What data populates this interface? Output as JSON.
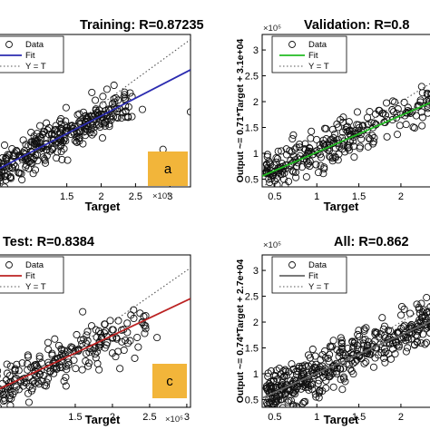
{
  "chart_data": [
    {
      "type": "scatter",
      "panel": "training",
      "title": "Training: R=0.87235",
      "xlabel": "Target",
      "ylabel": "",
      "xlim": [
        0,
        3.3
      ],
      "ylim": [
        0.35,
        3.4
      ],
      "x_ticks": [
        "1.5",
        "2",
        "2.5",
        "3"
      ],
      "y_ticks": [],
      "scale_label": "×10⁵",
      "legend": [
        "Data",
        "Fit",
        "Y = T"
      ],
      "badge": "a",
      "fit_color": "#2b2bb0",
      "fit": {
        "slope": 0.71,
        "intercept": 0.35
      },
      "series": [
        {
          "name": "Data",
          "x": [
            0.5,
            0.7,
            0.9,
            1.0,
            1.1,
            1.2,
            1.3,
            1.4,
            1.5,
            1.6,
            1.7,
            1.8,
            1.9,
            2.0,
            2.2,
            2.4,
            2.6,
            3.3,
            2.9
          ],
          "y": [
            0.75,
            0.85,
            0.95,
            1.05,
            1.15,
            1.2,
            1.3,
            1.3,
            1.45,
            1.45,
            1.6,
            1.5,
            1.7,
            1.8,
            1.9,
            1.95,
            1.9,
            1.85,
            1.1
          ]
        }
      ]
    },
    {
      "type": "scatter",
      "panel": "validation",
      "title": "Validation: R=0.8",
      "xlabel": "Target",
      "ylabel": "Output ~= 0.71*Target + 3.1e+04",
      "xlim": [
        0.35,
        2.4
      ],
      "ylim": [
        0.35,
        3.3
      ],
      "x_ticks": [
        "0.5",
        "1",
        "1.5",
        "2"
      ],
      "y_ticks": [
        "0.5",
        "1",
        "1.5",
        "2",
        "2.5",
        "3"
      ],
      "scale_label": "×10⁵",
      "legend": [
        "Data",
        "Fit",
        "Y = T"
      ],
      "fit_color": "#22bb22",
      "fit": {
        "slope": 0.71,
        "intercept": 0.31
      },
      "series": [
        {
          "name": "Data",
          "x": [
            0.45,
            0.6,
            0.7,
            0.8,
            0.9,
            1.0,
            1.1,
            1.2,
            1.3,
            1.4,
            1.5,
            1.6,
            1.7,
            1.8,
            1.9,
            2.0,
            2.1,
            2.2
          ],
          "y": [
            0.6,
            0.7,
            0.8,
            0.95,
            1.0,
            1.05,
            1.1,
            1.2,
            1.3,
            1.35,
            1.4,
            1.45,
            1.55,
            1.6,
            1.65,
            1.75,
            1.8,
            1.9
          ]
        }
      ]
    },
    {
      "type": "scatter",
      "panel": "test",
      "title": "Test: R=0.8384",
      "xlabel": "Target",
      "ylabel": "",
      "xlim": [
        0,
        3.05
      ],
      "ylim": [
        0.35,
        3.3
      ],
      "x_ticks": [
        "1.5",
        "2",
        "2.5",
        "3"
      ],
      "y_ticks": [],
      "scale_label": "×10⁵",
      "legend": [
        "Data",
        "Fit",
        "Y = T"
      ],
      "badge": "c",
      "fit_color": "#bb2222",
      "fit": {
        "slope": 0.68,
        "intercept": 0.38
      },
      "series": [
        {
          "name": "Data",
          "x": [
            0.4,
            0.6,
            0.8,
            1.0,
            1.2,
            1.4,
            1.5,
            1.7,
            1.9,
            2.0,
            2.2,
            2.4,
            2.6,
            2.3,
            1.6,
            2.1
          ],
          "y": [
            0.6,
            0.75,
            0.9,
            1.1,
            1.2,
            1.3,
            1.45,
            1.5,
            1.5,
            1.4,
            1.8,
            2.0,
            1.7,
            1.3,
            2.2,
            1.1
          ]
        }
      ]
    },
    {
      "type": "scatter",
      "panel": "all",
      "title": "All: R=0.862",
      "xlabel": "Target",
      "ylabel": "Output ~= 0.74*Target + 2.7e+04",
      "xlim": [
        0.35,
        2.4
      ],
      "ylim": [
        0.35,
        3.3
      ],
      "x_ticks": [
        "0.5",
        "1",
        "1.5",
        "2"
      ],
      "y_ticks": [
        "0.5",
        "1",
        "1.5",
        "2",
        "2.5",
        "3"
      ],
      "scale_label": "×10⁵",
      "legend": [
        "Data",
        "Fit",
        "Y = T"
      ],
      "fit_color": "#666666",
      "fit": {
        "slope": 0.74,
        "intercept": 0.27
      },
      "series": [
        {
          "name": "Data",
          "x": [
            0.45,
            0.6,
            0.7,
            0.8,
            0.9,
            1.0,
            1.1,
            1.2,
            1.3,
            1.4,
            1.5,
            1.6,
            1.7,
            1.8,
            1.9,
            2.0,
            2.1,
            2.2,
            2.3
          ],
          "y": [
            0.55,
            0.7,
            0.8,
            0.85,
            0.95,
            1.05,
            1.1,
            1.15,
            1.25,
            1.3,
            1.35,
            1.45,
            1.5,
            1.6,
            1.65,
            1.7,
            1.8,
            1.85,
            1.95
          ]
        }
      ]
    }
  ]
}
